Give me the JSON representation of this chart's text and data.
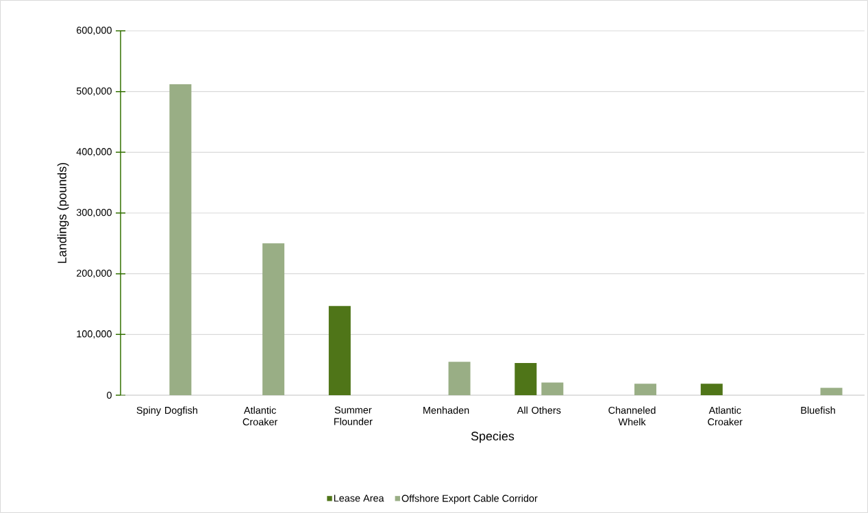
{
  "chart_data": {
    "type": "bar",
    "xlabel": "Species",
    "ylabel": "Landings (pounds)",
    "categories": [
      "Spiny Dogfish",
      "Atlantic Croaker",
      "Summer Flounder",
      "Menhaden",
      "All Others",
      "Channeled Whelk",
      "Atlantic Croaker",
      "Bluefish"
    ],
    "series": [
      {
        "name": "Lease Area",
        "color": "#4f7518",
        "values": [
          null,
          null,
          147000,
          null,
          53000,
          null,
          19000,
          null
        ]
      },
      {
        "name": "Offshore Export Cable Corridor",
        "color": "#99ae85",
        "values": [
          512000,
          250000,
          null,
          55000,
          21000,
          19000,
          null,
          12000
        ]
      }
    ],
    "ylim": [
      0,
      600000
    ],
    "yticks": [
      {
        "value": 0,
        "label": "0"
      },
      {
        "value": 100000,
        "label": "100,000"
      },
      {
        "value": 200000,
        "label": "200,000"
      },
      {
        "value": 300000,
        "label": "300,000"
      },
      {
        "value": 400000,
        "label": "400,000"
      },
      {
        "value": 500000,
        "label": "500,000"
      },
      {
        "value": 600000,
        "label": "600,000"
      }
    ],
    "grid": "y",
    "legend": "bottom"
  }
}
